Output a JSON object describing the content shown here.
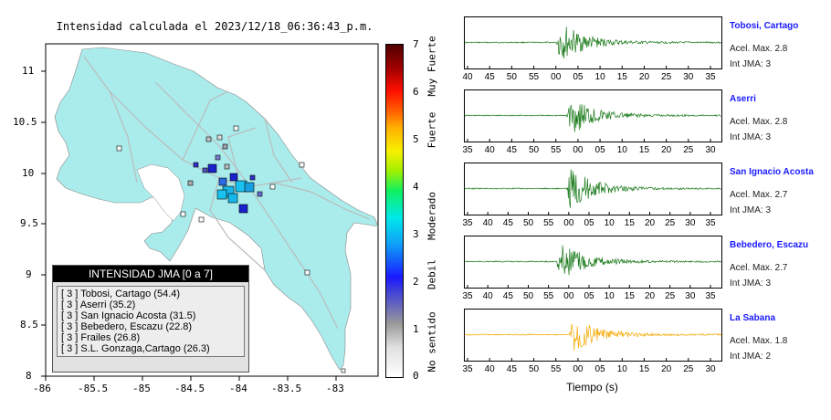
{
  "map": {
    "title": "Intensidad calculada el 2023/12/18_06:36:43_p.m.",
    "x_ticks": [
      "-86",
      "-85.5",
      "-85",
      "-84.5",
      "-84",
      "-83.5",
      "-83"
    ],
    "y_ticks": [
      "8",
      "8.5",
      "9",
      "9.5",
      "10",
      "10.5",
      "11"
    ],
    "legend": {
      "header": "INTENSIDAD JMA [0 a 7]",
      "entries": [
        {
          "level": "[ 3 ]",
          "name": "Tobosi, Cartago (54.4)"
        },
        {
          "level": "[ 3 ]",
          "name": "Aserri (35.2)"
        },
        {
          "level": "[ 3 ]",
          "name": "San Ignacio Acosta (31.5)"
        },
        {
          "level": "[ 3 ]",
          "name": "Bebedero, Escazu (22.8)"
        },
        {
          "level": "[ 3 ]",
          "name": "Frailes (26.8)"
        },
        {
          "level": "[ 3 ]",
          "name": "S.L. Gonzaga,Cartago (26.3)"
        }
      ]
    }
  },
  "colorbar": {
    "ticks": [
      "0",
      "1",
      "2",
      "3",
      "4",
      "5",
      "6",
      "7"
    ],
    "labels": [
      "No sentido",
      "Debil",
      "Moderado",
      "Fuerte",
      "Muy Fuerte"
    ]
  },
  "waveforms": [
    {
      "name": "Tobosi, Cartago",
      "accel": "Acel. Max. 2.8",
      "intensity": "Int JMA: 3",
      "ticks": [
        "40",
        "45",
        "50",
        "55",
        "00",
        "05",
        "10",
        "15",
        "20",
        "25",
        "30",
        "35"
      ],
      "color": "#1a7a1a"
    },
    {
      "name": "Aserri",
      "accel": "Acel. Max. 2.8",
      "intensity": "Int JMA: 3",
      "ticks": [
        "35",
        "40",
        "45",
        "50",
        "55",
        "00",
        "05",
        "10",
        "15",
        "20",
        "25",
        "30"
      ],
      "color": "#1a7a1a"
    },
    {
      "name": "San Ignacio Acosta",
      "accel": "Acel. Max. 2.7",
      "intensity": "Int JMA: 3",
      "ticks": [
        "35",
        "40",
        "45",
        "50",
        "55",
        "00",
        "05",
        "10",
        "15",
        "20",
        "25",
        "30",
        "35"
      ],
      "color": "#1a7a1a"
    },
    {
      "name": "Bebedero, Escazu",
      "accel": "Acel. Max. 2.7",
      "intensity": "Int JMA: 3",
      "ticks": [
        "35",
        "40",
        "45",
        "50",
        "55",
        "00",
        "05",
        "10",
        "15",
        "20",
        "25",
        "30",
        "35"
      ],
      "color": "#1a7a1a"
    },
    {
      "name": "La Sabana",
      "accel": "Acel. Max. 1.8",
      "intensity": "Int JMA: 2",
      "ticks": [
        "35",
        "40",
        "45",
        "50",
        "55",
        "00",
        "05",
        "10",
        "15",
        "20",
        "25",
        "30"
      ],
      "color": "#f5a800"
    }
  ],
  "time_axis_label": "Tiempo (s)"
}
